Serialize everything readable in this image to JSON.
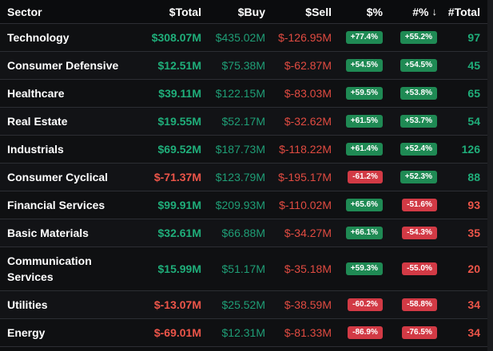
{
  "headers": {
    "sector": "Sector",
    "total": "$Total",
    "buy": "$Buy",
    "sell": "$Sell",
    "pct": "$%",
    "npct": "#%",
    "sort_arrow": "↓",
    "ntotal": "#Total"
  },
  "rows": [
    {
      "sector": "Technology",
      "total": "$308.07M",
      "total_sign": "pos",
      "buy": "$435.02M",
      "sell": "$-126.95M",
      "pct": "+77.4%",
      "pct_sign": "pos",
      "npct": "+55.2%",
      "npct_sign": "pos",
      "ntotal": "97",
      "ntotal_sign": "pos"
    },
    {
      "sector": "Consumer Defensive",
      "total": "$12.51M",
      "total_sign": "pos",
      "buy": "$75.38M",
      "sell": "$-62.87M",
      "pct": "+54.5%",
      "pct_sign": "pos",
      "npct": "+54.5%",
      "npct_sign": "pos",
      "ntotal": "45",
      "ntotal_sign": "pos"
    },
    {
      "sector": "Healthcare",
      "total": "$39.11M",
      "total_sign": "pos",
      "buy": "$122.15M",
      "sell": "$-83.03M",
      "pct": "+59.5%",
      "pct_sign": "pos",
      "npct": "+53.8%",
      "npct_sign": "pos",
      "ntotal": "65",
      "ntotal_sign": "pos"
    },
    {
      "sector": "Real Estate",
      "total": "$19.55M",
      "total_sign": "pos",
      "buy": "$52.17M",
      "sell": "$-32.62M",
      "pct": "+61.5%",
      "pct_sign": "pos",
      "npct": "+53.7%",
      "npct_sign": "pos",
      "ntotal": "54",
      "ntotal_sign": "pos"
    },
    {
      "sector": "Industrials",
      "total": "$69.52M",
      "total_sign": "pos",
      "buy": "$187.73M",
      "sell": "$-118.22M",
      "pct": "+61.4%",
      "pct_sign": "pos",
      "npct": "+52.4%",
      "npct_sign": "pos",
      "ntotal": "126",
      "ntotal_sign": "pos"
    },
    {
      "sector": "Consumer Cyclical",
      "total": "$-71.37M",
      "total_sign": "neg",
      "buy": "$123.79M",
      "sell": "$-195.17M",
      "pct": "-61.2%",
      "pct_sign": "neg",
      "npct": "+52.3%",
      "npct_sign": "pos",
      "ntotal": "88",
      "ntotal_sign": "pos"
    },
    {
      "sector": "Financial Services",
      "total": "$99.91M",
      "total_sign": "pos",
      "buy": "$209.93M",
      "sell": "$-110.02M",
      "pct": "+65.6%",
      "pct_sign": "pos",
      "npct": "-51.6%",
      "npct_sign": "neg",
      "ntotal": "93",
      "ntotal_sign": "neg"
    },
    {
      "sector": "Basic Materials",
      "total": "$32.61M",
      "total_sign": "pos",
      "buy": "$66.88M",
      "sell": "$-34.27M",
      "pct": "+66.1%",
      "pct_sign": "pos",
      "npct": "-54.3%",
      "npct_sign": "neg",
      "ntotal": "35",
      "ntotal_sign": "neg"
    },
    {
      "sector": "Communication Services",
      "total": "$15.99M",
      "total_sign": "pos",
      "buy": "$51.17M",
      "sell": "$-35.18M",
      "pct": "+59.3%",
      "pct_sign": "pos",
      "npct": "-55.0%",
      "npct_sign": "neg",
      "ntotal": "20",
      "ntotal_sign": "neg",
      "tall": true
    },
    {
      "sector": "Utilities",
      "total": "$-13.07M",
      "total_sign": "neg",
      "buy": "$25.52M",
      "sell": "$-38.59M",
      "pct": "-60.2%",
      "pct_sign": "neg",
      "npct": "-58.8%",
      "npct_sign": "neg",
      "ntotal": "34",
      "ntotal_sign": "neg"
    },
    {
      "sector": "Energy",
      "total": "$-69.01M",
      "total_sign": "neg",
      "buy": "$12.31M",
      "sell": "$-81.33M",
      "pct": "-86.9%",
      "pct_sign": "neg",
      "npct": "-76.5%",
      "npct_sign": "neg",
      "ntotal": "34",
      "ntotal_sign": "neg"
    }
  ],
  "colors": {
    "positive": "#1fae7a",
    "negative": "#ec5549",
    "pill_positive": "#1f8a54",
    "pill_negative": "#d23a45",
    "background": "#0e0f11"
  }
}
